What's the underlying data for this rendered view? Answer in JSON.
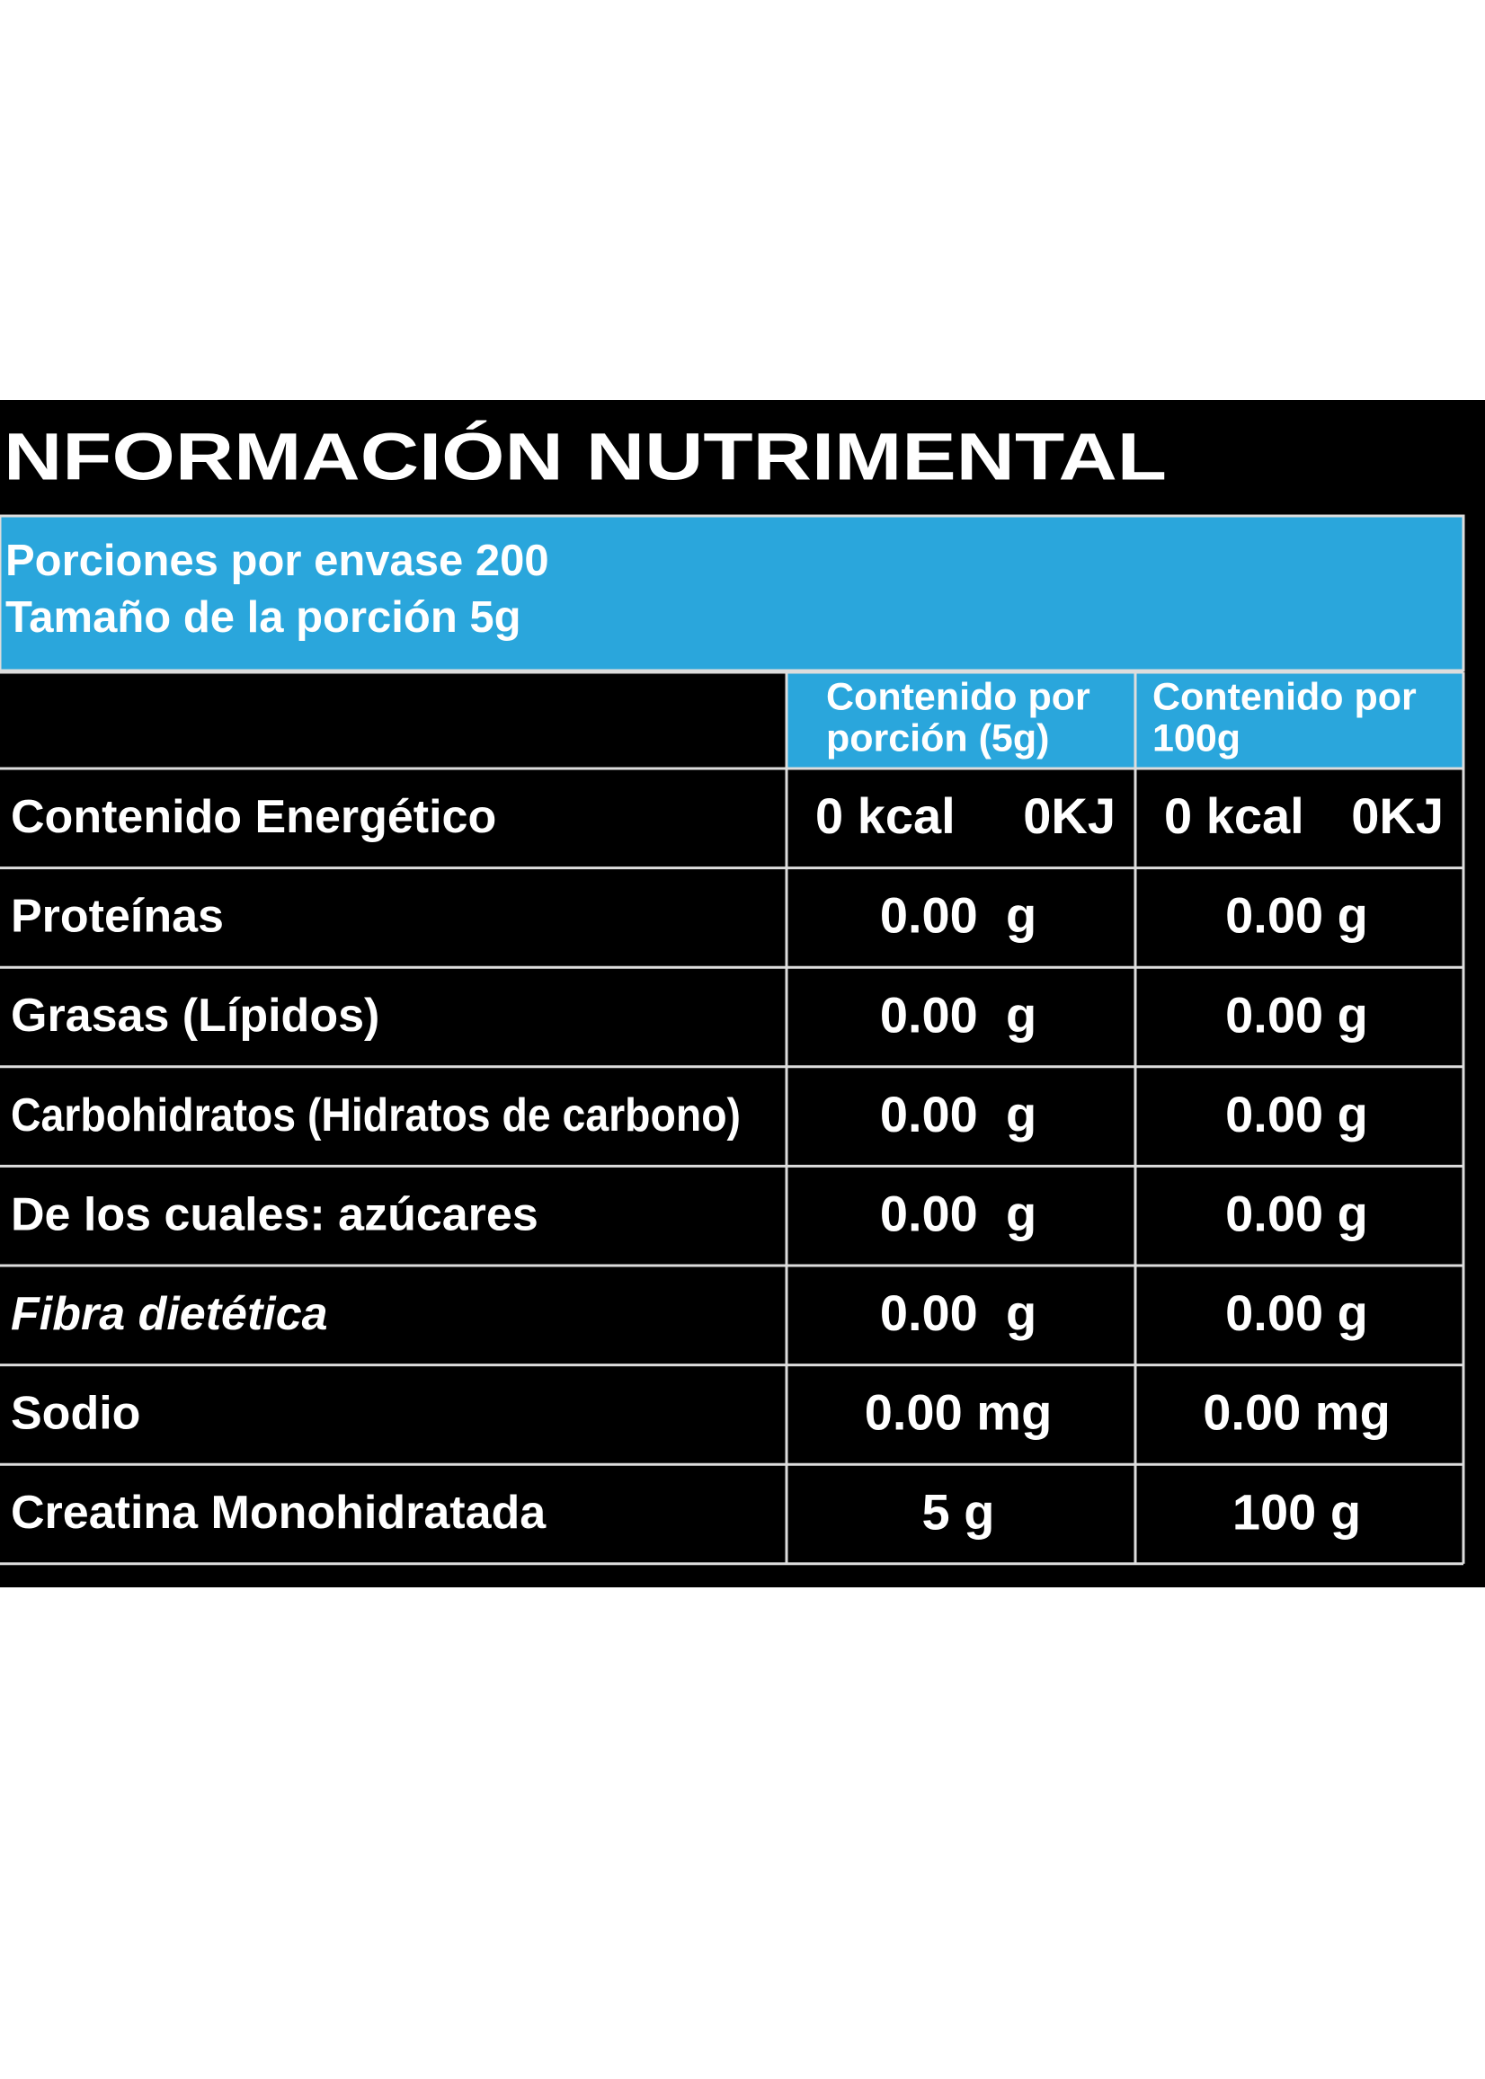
{
  "title": "NFORMACIÓN NUTRIMENTAL",
  "servings": {
    "lines": [
      "Porciones por envase 200",
      "Tamaño de la porción 5g"
    ]
  },
  "table": {
    "columns": [
      [
        "Contenido por",
        "porción (5g)"
      ],
      [
        "Contenido por",
        "100g"
      ]
    ],
    "rows": [
      {
        "label": "Contenido Energético",
        "cells": [
          [
            "0 kcal",
            "0KJ"
          ],
          [
            "0 kcal",
            "0KJ"
          ]
        ]
      },
      {
        "label": "Proteínas",
        "cells": [
          "0.00  g",
          "0.00 g"
        ]
      },
      {
        "label": "Grasas (Lípidos)",
        "cells": [
          "0.00  g",
          "0.00 g"
        ]
      },
      {
        "label": "Carbohidratos (Hidratos de carbono)",
        "cells": [
          "0.00  g",
          "0.00 g"
        ]
      },
      {
        "label": "De los cuales: azúcares",
        "cells": [
          "0.00  g",
          "0.00 g"
        ]
      },
      {
        "label": "Fibra dietética",
        "cells": [
          "0.00  g",
          "0.00 g"
        ],
        "italic": true
      },
      {
        "label": "Sodio",
        "cells": [
          "0.00 mg",
          "0.00 mg"
        ]
      },
      {
        "label": "Creatina Monohidratada",
        "cells": [
          "5 g",
          "100 g"
        ]
      }
    ]
  }
}
